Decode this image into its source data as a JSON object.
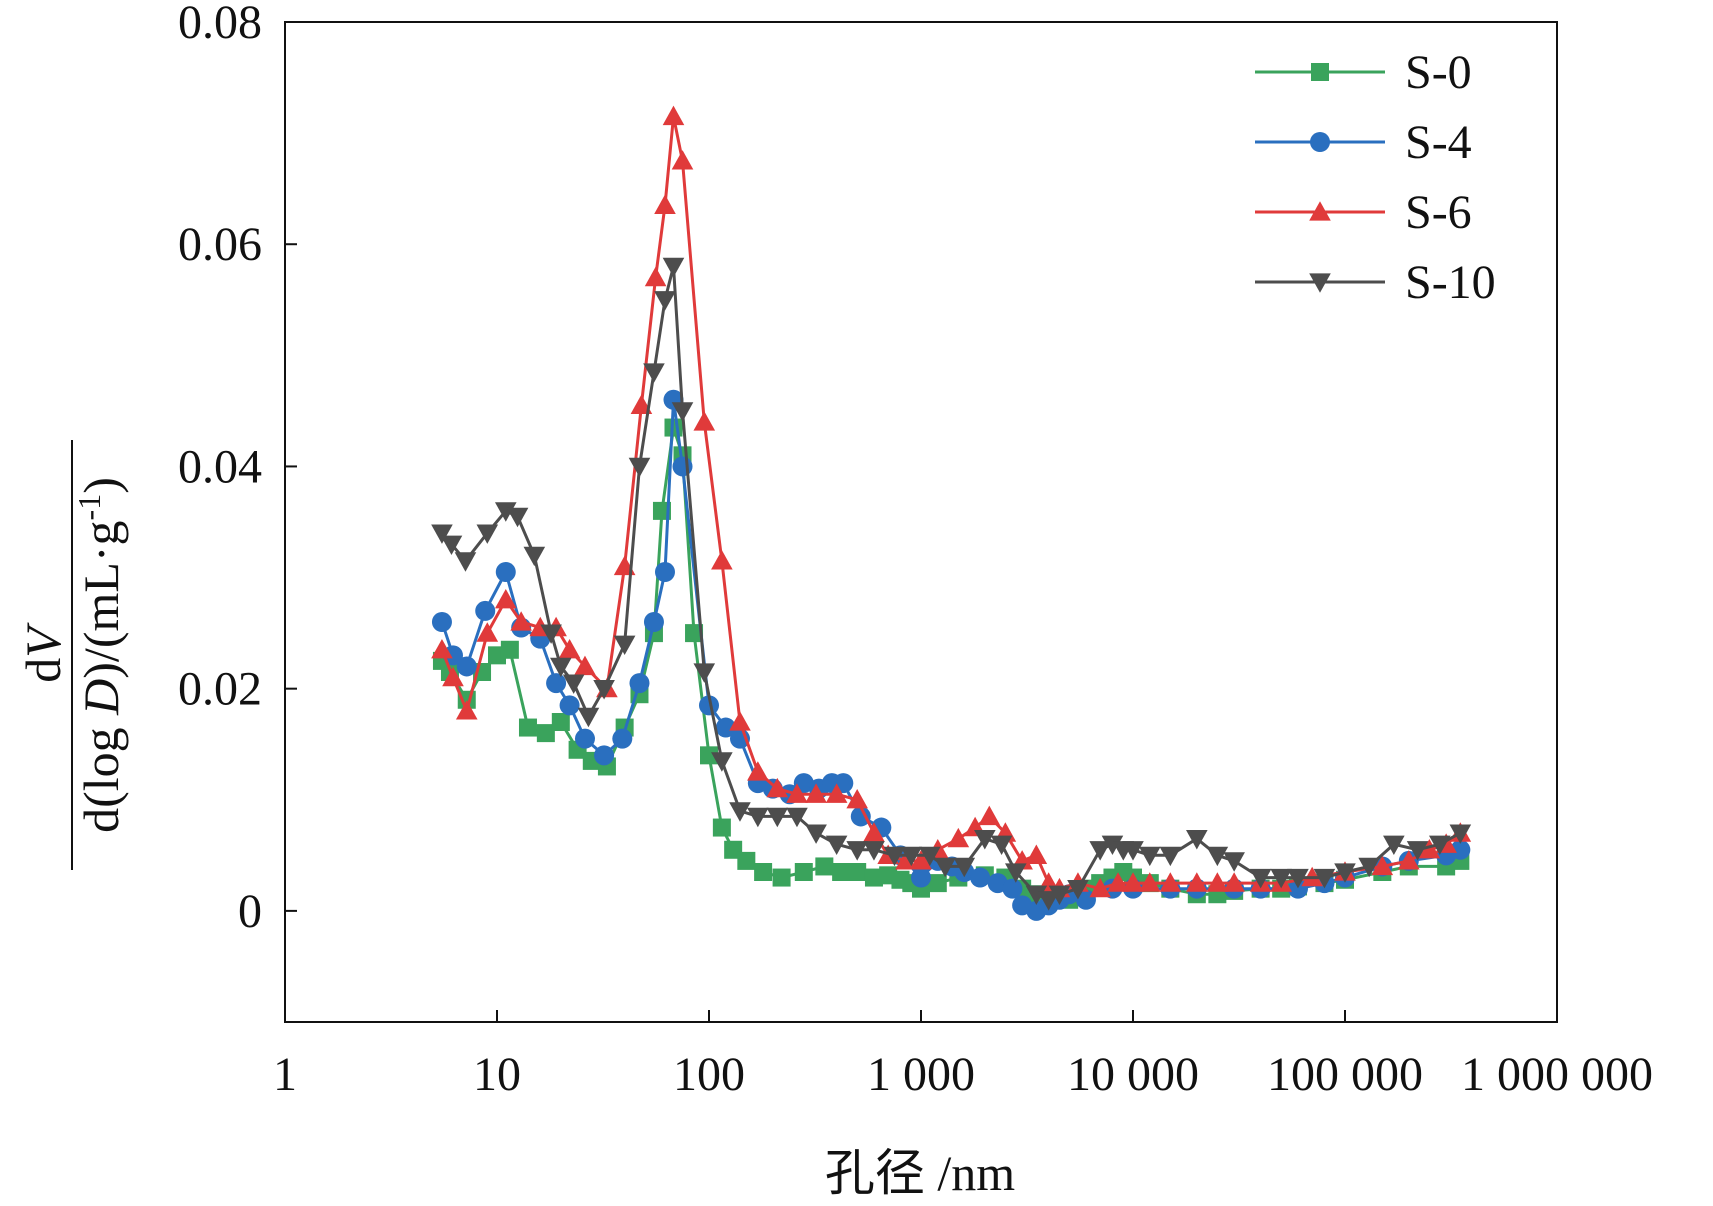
{
  "chart_data": {
    "type": "line",
    "x_scale": "log",
    "xlim": [
      1,
      1000000
    ],
    "ylim": [
      -0.01,
      0.08
    ],
    "x_ticks": [
      1,
      10,
      100,
      1000,
      10000,
      100000,
      1000000
    ],
    "x_tick_labels": [
      "1",
      "10",
      "100",
      "1 000",
      "10 000",
      "100 000",
      "1 000 000"
    ],
    "y_ticks": [
      0,
      0.02,
      0.04,
      0.06,
      0.08
    ],
    "y_tick_labels": [
      "0",
      "0.02",
      "0.04",
      "0.06",
      "0.08"
    ],
    "xlabel": "孔径 /nm",
    "ylabel": {
      "numerator_d": "d",
      "numerator_var": "V",
      "denominator_pre": "d(log ",
      "denominator_var": "D",
      "denominator_post": ")/(mL·g",
      "superscript": "-1",
      "close": ")"
    },
    "grid": false,
    "legend_position": "top-right",
    "series": [
      {
        "name": "S-0",
        "color": "#3aa35c",
        "marker": "square",
        "x": [
          5.5,
          6,
          7.2,
          8.5,
          10,
          11.5,
          14,
          17,
          20,
          24,
          28,
          33,
          40,
          47,
          55,
          60,
          68,
          75,
          85,
          100,
          115,
          130,
          150,
          180,
          220,
          280,
          350,
          420,
          500,
          600,
          700,
          800,
          900,
          1000,
          1200,
          1500,
          2000,
          2500,
          3000,
          3500,
          4000,
          5000,
          6000,
          7000,
          8000,
          9000,
          10000,
          12000,
          15000,
          20000,
          25000,
          30000,
          40000,
          50000,
          60000,
          80000,
          100000,
          150000,
          200000,
          300000,
          350000
        ],
        "y": [
          0.0225,
          0.0215,
          0.019,
          0.0215,
          0.023,
          0.0235,
          0.0165,
          0.016,
          0.017,
          0.0145,
          0.0135,
          0.013,
          0.0165,
          0.0195,
          0.025,
          0.036,
          0.0435,
          0.041,
          0.025,
          0.014,
          0.0075,
          0.0055,
          0.0045,
          0.0035,
          0.003,
          0.0035,
          0.004,
          0.0035,
          0.0035,
          0.003,
          0.0032,
          0.0028,
          0.0025,
          0.002,
          0.0025,
          0.003,
          0.0032,
          0.003,
          0.002,
          0.0015,
          0.001,
          0.001,
          0.002,
          0.0025,
          0.003,
          0.0035,
          0.003,
          0.0025,
          0.002,
          0.0015,
          0.0015,
          0.0018,
          0.002,
          0.002,
          0.0022,
          0.0025,
          0.0028,
          0.0035,
          0.004,
          0.004,
          0.0045
        ]
      },
      {
        "name": "S-4",
        "color": "#2a6fbf",
        "marker": "circle",
        "x": [
          5.5,
          6.2,
          7.2,
          8.8,
          11,
          13,
          16,
          19,
          22,
          26,
          32,
          39,
          47,
          55,
          62,
          68,
          75,
          100,
          120,
          140,
          170,
          200,
          240,
          280,
          330,
          380,
          430,
          520,
          650,
          800,
          1000,
          1200,
          1400,
          1600,
          1900,
          2300,
          2700,
          3000,
          3500,
          4000,
          4500,
          5000,
          6000,
          8000,
          10000,
          15000,
          20000,
          30000,
          40000,
          60000,
          80000,
          100000,
          150000,
          200000,
          300000,
          350000
        ],
        "y": [
          0.026,
          0.023,
          0.022,
          0.027,
          0.0305,
          0.0255,
          0.0245,
          0.0205,
          0.0185,
          0.0155,
          0.014,
          0.0155,
          0.0205,
          0.026,
          0.0305,
          0.046,
          0.04,
          0.0185,
          0.0165,
          0.0155,
          0.0115,
          0.011,
          0.0105,
          0.0115,
          0.011,
          0.0115,
          0.0115,
          0.0085,
          0.0075,
          0.005,
          0.003,
          0.0045,
          0.004,
          0.0035,
          0.003,
          0.0025,
          0.002,
          0.0005,
          0,
          0.0005,
          0.001,
          0.0015,
          0.001,
          0.002,
          0.002,
          0.002,
          0.002,
          0.002,
          0.002,
          0.002,
          0.0025,
          0.003,
          0.004,
          0.0045,
          0.005,
          0.0055
        ]
      },
      {
        "name": "S-6",
        "color": "#e03a3a",
        "marker": "triangle-up",
        "x": [
          5.5,
          6.2,
          7.2,
          9,
          11,
          13,
          16,
          19,
          22,
          26,
          33,
          40,
          48,
          56,
          62,
          68,
          75,
          95,
          115,
          140,
          170,
          210,
          260,
          320,
          400,
          500,
          600,
          700,
          850,
          1000,
          1200,
          1500,
          1800,
          2100,
          2500,
          3000,
          3500,
          4000,
          4500,
          5500,
          7000,
          8500,
          10000,
          12000,
          15000,
          20000,
          25000,
          30000,
          40000,
          50000,
          70000,
          100000,
          150000,
          200000,
          250000,
          300000,
          350000
        ],
        "y": [
          0.0235,
          0.021,
          0.018,
          0.025,
          0.028,
          0.026,
          0.0255,
          0.0255,
          0.0235,
          0.022,
          0.02,
          0.031,
          0.0455,
          0.057,
          0.0635,
          0.0715,
          0.0675,
          0.044,
          0.0315,
          0.017,
          0.0125,
          0.011,
          0.0105,
          0.0105,
          0.0105,
          0.01,
          0.007,
          0.005,
          0.0045,
          0.0045,
          0.0055,
          0.0065,
          0.0075,
          0.0085,
          0.007,
          0.0045,
          0.005,
          0.0025,
          0.002,
          0.0025,
          0.002,
          0.0025,
          0.0025,
          0.0025,
          0.0025,
          0.0025,
          0.0025,
          0.0025,
          0.0025,
          0.0025,
          0.003,
          0.0035,
          0.004,
          0.0045,
          0.0055,
          0.006,
          0.007
        ]
      },
      {
        "name": "S-10",
        "color": "#4d4d4d",
        "marker": "triangle-down",
        "x": [
          5.5,
          6.1,
          7.1,
          9,
          11,
          12.5,
          15,
          18,
          20,
          23,
          27,
          32,
          40,
          47,
          55,
          62,
          68,
          75,
          95,
          115,
          140,
          170,
          210,
          260,
          320,
          400,
          500,
          600,
          750,
          900,
          1100,
          1300,
          1600,
          2000,
          2400,
          2800,
          3500,
          4000,
          4500,
          5500,
          7000,
          8000,
          9000,
          10000,
          12000,
          15000,
          20000,
          25000,
          30000,
          40000,
          50000,
          60000,
          80000,
          100000,
          130000,
          170000,
          220000,
          280000,
          350000
        ],
        "y": [
          0.034,
          0.033,
          0.0315,
          0.034,
          0.036,
          0.0355,
          0.032,
          0.025,
          0.022,
          0.0205,
          0.0175,
          0.02,
          0.024,
          0.04,
          0.0485,
          0.055,
          0.058,
          0.045,
          0.0215,
          0.0135,
          0.009,
          0.0085,
          0.0085,
          0.0085,
          0.007,
          0.006,
          0.0055,
          0.0055,
          0.005,
          0.005,
          0.005,
          0.004,
          0.004,
          0.0065,
          0.006,
          0.0035,
          0.0015,
          0.001,
          0.0015,
          0.002,
          0.0055,
          0.006,
          0.0055,
          0.0055,
          0.005,
          0.005,
          0.0065,
          0.005,
          0.0045,
          0.003,
          0.003,
          0.003,
          0.003,
          0.0035,
          0.004,
          0.006,
          0.0055,
          0.006,
          0.007
        ]
      }
    ]
  }
}
